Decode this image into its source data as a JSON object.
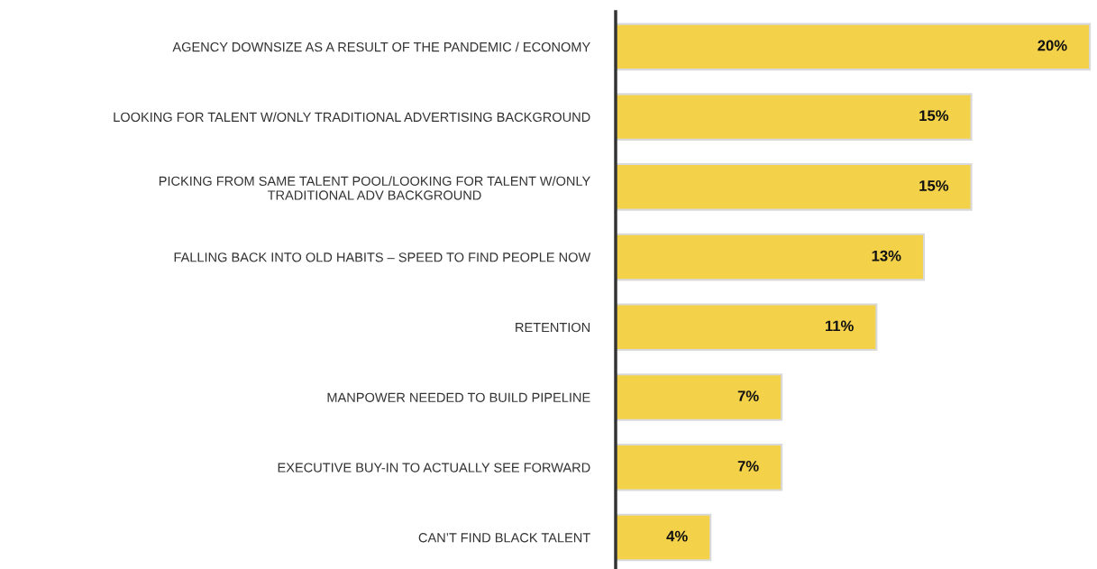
{
  "chart_data": {
    "type": "bar",
    "orientation": "horizontal",
    "categories": [
      "AGENCY DOWNSIZE AS A RESULT OF THE PANDEMIC / ECONOMY",
      "LOOKING FOR TALENT W/ONLY TRADITIONAL ADVERTISING BACKGROUND",
      "PICKING FROM SAME TALENT POOL/LOOKING FOR TALENT W/ONLY\nTRADITIONAL ADV BACKGROUND",
      "FALLING BACK INTO OLD HABITS – SPEED TO FIND PEOPLE NOW",
      "RETENTION",
      "MANPOWER NEEDED TO BUILD PIPELINE",
      "EXECUTIVE BUY-IN TO ACTUALLY SEE FORWARD",
      "CAN’T FIND BLACK TALENT"
    ],
    "values": [
      20,
      15,
      15,
      13,
      11,
      7,
      7,
      4
    ],
    "value_labels": [
      "20%",
      "15%",
      "15%",
      "13%",
      "11%",
      "7%",
      "7%",
      "4%"
    ],
    "color": "#f3d24a",
    "grid": false,
    "legend": false
  }
}
